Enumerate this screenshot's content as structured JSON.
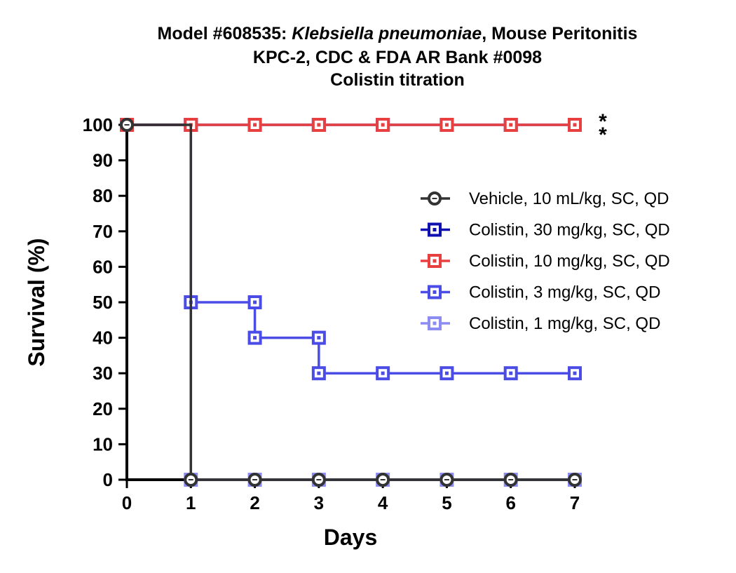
{
  "chart_data": {
    "type": "line",
    "step": true,
    "title_lines": [
      {
        "parts": [
          {
            "text": "Model #608535: ",
            "italic": false
          },
          {
            "text": "Klebsiella pneumoniae",
            "italic": true
          },
          {
            "text": ", Mouse Peritonitis",
            "italic": false
          }
        ]
      },
      {
        "parts": [
          {
            "text": "KPC-2, CDC & FDA AR Bank #0098",
            "italic": false
          }
        ]
      },
      {
        "parts": [
          {
            "text": "Colistin titration",
            "italic": false
          }
        ]
      }
    ],
    "xlabel": "Days",
    "ylabel": "Survival (%)",
    "xlim": [
      0,
      7
    ],
    "ylim": [
      0,
      100
    ],
    "xticks": [
      0,
      1,
      2,
      3,
      4,
      5,
      6,
      7
    ],
    "yticks": [
      0,
      10,
      20,
      30,
      40,
      50,
      60,
      70,
      80,
      90,
      100
    ],
    "grid": false,
    "legend_position": "right",
    "annotations": [
      {
        "text": "*",
        "x": 7,
        "y": 100
      },
      {
        "text": "*",
        "x": 7,
        "y": 100
      }
    ],
    "series": [
      {
        "name": "Colistin, 1 mg/kg, SC, QD",
        "color": "#8c8cf2",
        "marker": "square",
        "x": [
          0,
          1,
          2,
          3,
          4,
          5,
          6,
          7
        ],
        "y": [
          100,
          0,
          0,
          0,
          0,
          0,
          0,
          0
        ]
      },
      {
        "name": "Colistin, 3 mg/kg, SC, QD",
        "color": "#4b4be6",
        "marker": "square",
        "x": [
          0,
          1,
          2,
          2,
          3,
          3,
          4,
          5,
          6,
          7
        ],
        "y": [
          100,
          50,
          50,
          40,
          40,
          30,
          30,
          30,
          30,
          30
        ]
      },
      {
        "name": "Colistin, 30 mg/kg, SC, QD",
        "color": "#1010b0",
        "marker": "square",
        "x": [
          0,
          1,
          2,
          3,
          4,
          5,
          6,
          7
        ],
        "y": [
          100,
          100,
          100,
          100,
          100,
          100,
          100,
          100
        ]
      },
      {
        "name": "Colistin, 10 mg/kg, SC, QD",
        "color": "#e84040",
        "marker": "square",
        "x": [
          0,
          1,
          2,
          3,
          4,
          5,
          6,
          7
        ],
        "y": [
          100,
          100,
          100,
          100,
          100,
          100,
          100,
          100
        ]
      },
      {
        "name": "Vehicle, 10 mL/kg, SC, QD",
        "color": "#333333",
        "marker": "circle",
        "x": [
          0,
          1,
          2,
          3,
          4,
          5,
          6,
          7
        ],
        "y": [
          100,
          0,
          0,
          0,
          0,
          0,
          0,
          0
        ]
      }
    ],
    "legend_order": [
      "Vehicle, 10 mL/kg, SC, QD",
      "Colistin, 30 mg/kg, SC, QD",
      "Colistin, 10 mg/kg, SC, QD",
      "Colistin, 3 mg/kg, SC, QD",
      "Colistin, 1 mg/kg, SC, QD"
    ]
  }
}
